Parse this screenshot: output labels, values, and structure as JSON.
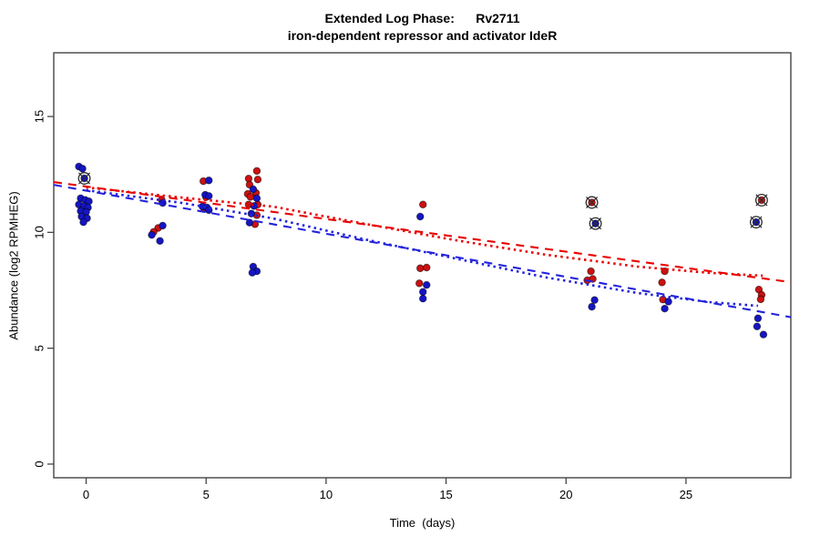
{
  "chart_data": {
    "type": "scatter",
    "title": "Extended Log Phase:      Rv2711",
    "subtitle": "iron-dependent repressor and activator IdeR",
    "xlabel": "Time  (days)",
    "ylabel": "Abundance  (log2 RPMHEG)",
    "xlim": [
      -1.35,
      29.37
    ],
    "ylim": [
      -0.59,
      17.75
    ],
    "x_ticks": [
      "0",
      "5",
      "10",
      "15",
      "20",
      "25"
    ],
    "x_tick_values": [
      0,
      5,
      10,
      15,
      20,
      25
    ],
    "y_ticks": [
      "0",
      "5",
      "10",
      "15"
    ],
    "y_tick_values": [
      0,
      5,
      10,
      15
    ],
    "grid": false,
    "legend": "none",
    "colors": {
      "red_points": "#CC1111",
      "blue_points": "#1515C4",
      "red_line": "#E80000",
      "blue_line": "#2323DC",
      "outlier_marker": "#2b2b2b",
      "axis": "#444444"
    },
    "point_columns": [
      "day",
      "abundance_log2",
      "jitter_px",
      "outlier"
    ],
    "series": [
      {
        "name": "red-strain-points",
        "color_key": "red_points",
        "marker": "filled-circle",
        "points": [
          [
            3,
            11.4,
            4,
            0
          ],
          [
            3,
            10.19,
            0,
            0
          ],
          [
            3,
            10.02,
            -5,
            0
          ],
          [
            5,
            12.21,
            -3,
            0
          ],
          [
            5,
            11.52,
            0,
            0
          ],
          [
            5,
            11.02,
            -2,
            0
          ],
          [
            7,
            12.65,
            3,
            0
          ],
          [
            7,
            12.32,
            -6,
            0
          ],
          [
            7,
            12.28,
            4,
            0
          ],
          [
            7,
            12.06,
            -5,
            0
          ],
          [
            7,
            11.7,
            2,
            0
          ],
          [
            7,
            11.66,
            -7,
            0
          ],
          [
            7,
            11.53,
            -4,
            0
          ],
          [
            7,
            11.2,
            -6,
            0
          ],
          [
            7,
            11.2,
            4,
            0
          ],
          [
            7,
            10.74,
            3,
            0
          ],
          [
            7,
            10.35,
            1,
            0
          ],
          [
            14,
            11.2,
            1,
            0
          ],
          [
            14,
            8.45,
            -2,
            0
          ],
          [
            14,
            8.48,
            5,
            0
          ],
          [
            14,
            7.8,
            -3,
            0
          ],
          [
            21,
            11.29,
            2,
            1
          ],
          [
            21,
            8.32,
            1,
            0
          ],
          [
            21,
            7.93,
            -3,
            0
          ],
          [
            21,
            7.99,
            3,
            0
          ],
          [
            24,
            8.32,
            3,
            0
          ],
          [
            24,
            7.84,
            0,
            0
          ],
          [
            24,
            7.1,
            1,
            0
          ],
          [
            28,
            11.39,
            4,
            1
          ],
          [
            28,
            7.53,
            1,
            0
          ],
          [
            28,
            7.3,
            4,
            0
          ],
          [
            28,
            7.11,
            3,
            0
          ]
        ]
      },
      {
        "name": "blue-strain-points",
        "color_key": "blue_points",
        "marker": "filled-circle",
        "points": [
          [
            0,
            12.84,
            -8,
            0
          ],
          [
            0,
            12.75,
            -4,
            0
          ],
          [
            0,
            12.33,
            -2,
            1
          ],
          [
            0,
            11.47,
            -6,
            0
          ],
          [
            0,
            11.4,
            -1,
            0
          ],
          [
            0,
            11.34,
            3,
            0
          ],
          [
            0,
            11.2,
            -8,
            0
          ],
          [
            0,
            11.14,
            -2,
            0
          ],
          [
            0,
            11.07,
            2,
            0
          ],
          [
            0,
            10.92,
            -6,
            0
          ],
          [
            0,
            10.88,
            0,
            0
          ],
          [
            0,
            10.68,
            -5,
            0
          ],
          [
            0,
            10.61,
            1,
            0
          ],
          [
            0,
            10.44,
            -3,
            0
          ],
          [
            3,
            11.27,
            5,
            0
          ],
          [
            3,
            10.29,
            5,
            0
          ],
          [
            3,
            9.89,
            -7,
            0
          ],
          [
            3,
            9.63,
            2,
            0
          ],
          [
            5,
            12.24,
            3,
            0
          ],
          [
            5,
            11.62,
            -1,
            0
          ],
          [
            5,
            11.57,
            3,
            0
          ],
          [
            5,
            11.12,
            -4,
            0
          ],
          [
            5,
            11.07,
            1,
            0
          ],
          [
            5,
            10.96,
            3,
            0
          ],
          [
            7,
            11.86,
            -1,
            0
          ],
          [
            7,
            11.47,
            3,
            0
          ],
          [
            7,
            11.14,
            0,
            0
          ],
          [
            7,
            10.81,
            -3,
            0
          ],
          [
            7,
            10.42,
            -5,
            0
          ],
          [
            7,
            8.52,
            -1,
            0
          ],
          [
            7,
            8.32,
            3,
            0
          ],
          [
            7,
            8.26,
            -2,
            0
          ],
          [
            14,
            10.68,
            -2,
            0
          ],
          [
            14,
            7.73,
            5,
            0
          ],
          [
            14,
            7.43,
            1,
            0
          ],
          [
            14,
            7.14,
            1,
            0
          ],
          [
            21,
            10.38,
            6,
            1
          ],
          [
            21,
            7.08,
            5,
            0
          ],
          [
            21,
            6.79,
            2,
            0
          ],
          [
            24,
            7.01,
            7,
            0
          ],
          [
            24,
            6.71,
            3,
            0
          ],
          [
            28,
            10.44,
            -2,
            1
          ],
          [
            28,
            6.29,
            0,
            0
          ],
          [
            28,
            5.94,
            -1,
            0
          ],
          [
            28,
            5.59,
            6,
            0
          ]
        ]
      }
    ],
    "fit_lines": [
      {
        "name": "red-linear-fit",
        "color_key": "red_line",
        "style": "longdash",
        "x": [
          -1.35,
          29.37
        ],
        "y": [
          12.17,
          7.85
        ]
      },
      {
        "name": "blue-linear-fit",
        "color_key": "blue_line",
        "style": "longdash",
        "x": [
          -1.35,
          29.37
        ],
        "y": [
          12.05,
          6.34
        ]
      },
      {
        "name": "red-smooth-fit",
        "color_key": "red_line",
        "style": "dotted",
        "x": [
          0,
          4,
          7.8,
          11.6,
          15.4,
          19.2,
          23,
          26,
          28.2
        ],
        "y": [
          11.94,
          11.5,
          11.11,
          10.37,
          9.66,
          9.03,
          8.52,
          8.25,
          8.13
        ]
      },
      {
        "name": "blue-smooth-fit",
        "color_key": "blue_line",
        "style": "dotted",
        "x": [
          0,
          4,
          7.8,
          11.6,
          15.4,
          19.2,
          23,
          26,
          28
        ],
        "y": [
          11.82,
          11.27,
          10.6,
          9.7,
          8.87,
          8.05,
          7.38,
          6.99,
          6.83
        ]
      }
    ]
  }
}
